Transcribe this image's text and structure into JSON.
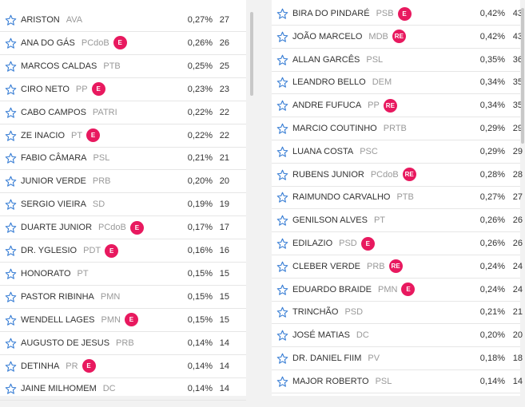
{
  "columns": [
    {
      "rows": [
        {
          "name": "ARISTON",
          "party": "AVA",
          "badge": null,
          "pct": "0,27%",
          "votes": "27"
        },
        {
          "name": "ANA DO GÁS",
          "party": "PCdoB",
          "badge": "E",
          "pct": "0,26%",
          "votes": "26"
        },
        {
          "name": "MARCOS CALDAS",
          "party": "PTB",
          "badge": null,
          "pct": "0,25%",
          "votes": "25"
        },
        {
          "name": "CIRO NETO",
          "party": "PP",
          "badge": "E",
          "pct": "0,23%",
          "votes": "23"
        },
        {
          "name": "CABO CAMPOS",
          "party": "PATRI",
          "badge": null,
          "pct": "0,22%",
          "votes": "22"
        },
        {
          "name": "ZE INACIO",
          "party": "PT",
          "badge": "E",
          "pct": "0,22%",
          "votes": "22"
        },
        {
          "name": "FABIO CÂMARA",
          "party": "PSL",
          "badge": null,
          "pct": "0,21%",
          "votes": "21"
        },
        {
          "name": "JUNIOR VERDE",
          "party": "PRB",
          "badge": null,
          "pct": "0,20%",
          "votes": "20"
        },
        {
          "name": "SERGIO VIEIRA",
          "party": "SD",
          "badge": null,
          "pct": "0,19%",
          "votes": "19"
        },
        {
          "name": "DUARTE JUNIOR",
          "party": "PCdoB",
          "badge": "E",
          "pct": "0,17%",
          "votes": "17"
        },
        {
          "name": "DR. YGLESIO",
          "party": "PDT",
          "badge": "E",
          "pct": "0,16%",
          "votes": "16"
        },
        {
          "name": "HONORATO",
          "party": "PT",
          "badge": null,
          "pct": "0,15%",
          "votes": "15"
        },
        {
          "name": "PASTOR RIBINHA",
          "party": "PMN",
          "badge": null,
          "pct": "0,15%",
          "votes": "15"
        },
        {
          "name": "WENDELL LAGES",
          "party": "PMN",
          "badge": "E",
          "pct": "0,15%",
          "votes": "15"
        },
        {
          "name": "AUGUSTO DE JESUS",
          "party": "PRB",
          "badge": null,
          "pct": "0,14%",
          "votes": "14"
        },
        {
          "name": "DETINHA",
          "party": "PR",
          "badge": "E",
          "pct": "0,14%",
          "votes": "14"
        },
        {
          "name": "JAINE MILHOMEM",
          "party": "DC",
          "badge": null,
          "pct": "0,14%",
          "votes": "14"
        }
      ]
    },
    {
      "rows": [
        {
          "name": "BIRA DO PINDARÉ",
          "party": "PSB",
          "badge": "E",
          "pct": "0,42%",
          "votes": "43"
        },
        {
          "name": "JOÃO MARCELO",
          "party": "MDB",
          "badge": "RE",
          "pct": "0,42%",
          "votes": "43"
        },
        {
          "name": "ALLAN GARCÊS",
          "party": "PSL",
          "badge": null,
          "pct": "0,35%",
          "votes": "36"
        },
        {
          "name": "LEANDRO BELLO",
          "party": "DEM",
          "badge": null,
          "pct": "0,34%",
          "votes": "35"
        },
        {
          "name": "ANDRE FUFUCA",
          "party": "PP",
          "badge": "RE",
          "pct": "0,34%",
          "votes": "35"
        },
        {
          "name": "MARCIO COUTINHO",
          "party": "PRTB",
          "badge": null,
          "pct": "0,29%",
          "votes": "29"
        },
        {
          "name": "LUANA COSTA",
          "party": "PSC",
          "badge": null,
          "pct": "0,29%",
          "votes": "29"
        },
        {
          "name": "RUBENS JUNIOR",
          "party": "PCdoB",
          "badge": "RE",
          "pct": "0,28%",
          "votes": "28"
        },
        {
          "name": "RAIMUNDO CARVALHO",
          "party": "PTB",
          "badge": null,
          "pct": "0,27%",
          "votes": "27"
        },
        {
          "name": "GENILSON ALVES",
          "party": "PT",
          "badge": null,
          "pct": "0,26%",
          "votes": "26"
        },
        {
          "name": "EDILAZIO",
          "party": "PSD",
          "badge": "E",
          "pct": "0,26%",
          "votes": "26"
        },
        {
          "name": "CLEBER VERDE",
          "party": "PRB",
          "badge": "RE",
          "pct": "0,24%",
          "votes": "24"
        },
        {
          "name": "EDUARDO BRAIDE",
          "party": "PMN",
          "badge": "E",
          "pct": "0,24%",
          "votes": "24"
        },
        {
          "name": "TRINCHÃO",
          "party": "PSD",
          "badge": null,
          "pct": "0,21%",
          "votes": "21"
        },
        {
          "name": "JOSÉ MATIAS",
          "party": "DC",
          "badge": null,
          "pct": "0,20%",
          "votes": "20"
        },
        {
          "name": "DR. DANIEL FIIM",
          "party": "PV",
          "badge": null,
          "pct": "0,18%",
          "votes": "18"
        },
        {
          "name": "MAJOR ROBERTO",
          "party": "PSL",
          "badge": null,
          "pct": "0,14%",
          "votes": "14"
        }
      ]
    }
  ]
}
